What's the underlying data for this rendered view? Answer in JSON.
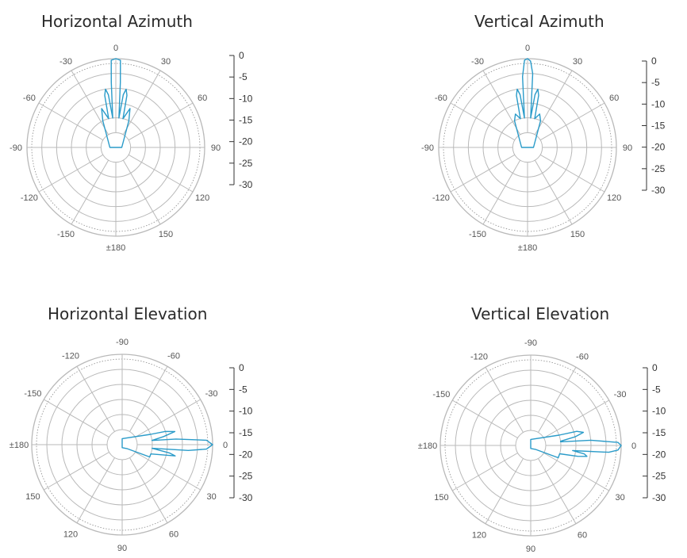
{
  "colors": {
    "trace": "#2a9bc9",
    "grid": "#b9b9b9",
    "dotted": "#8a8a8a",
    "text": "#555555",
    "scale": "#333333"
  },
  "chart_data": [
    {
      "type": "polar",
      "title": "Horizontal Azimuth",
      "angle_labels": [
        "0",
        "30",
        "60",
        "90",
        "120",
        "150",
        "±180",
        "-150",
        "-120",
        "-90",
        "-60",
        "-30"
      ],
      "angle_values": [
        0,
        30,
        60,
        90,
        120,
        150,
        180,
        -150,
        -120,
        -90,
        -60,
        -30
      ],
      "zero_direction": "top",
      "scale_ticks": [
        "0",
        "-5",
        "-10",
        "-15",
        "-20",
        "-25",
        "-30"
      ],
      "rlim": [
        -30,
        0
      ],
      "series": [
        {
          "points": [
            [
              -6,
              -20
            ],
            [
              -4,
              -8
            ],
            [
              -3,
              -0.5
            ],
            [
              0,
              0
            ],
            [
              3,
              -0.5
            ],
            [
              4,
              -8
            ],
            [
              6,
              -20
            ],
            [
              8,
              -12
            ],
            [
              10,
              -10
            ],
            [
              12,
              -12
            ],
            [
              14,
              -20
            ],
            [
              20,
              -16
            ],
            [
              26,
              -20
            ],
            [
              90,
              -28
            ],
            [
              180,
              -30
            ],
            [
              270,
              -28
            ],
            [
              334,
              -20
            ],
            [
              340,
              -16
            ],
            [
              346,
              -20
            ],
            [
              348,
              -12
            ],
            [
              350,
              -10
            ],
            [
              352,
              -12
            ],
            [
              354,
              -20
            ]
          ]
        }
      ]
    },
    {
      "type": "polar",
      "title": "Vertical Azimuth",
      "angle_labels": [
        "0",
        "30",
        "60",
        "90",
        "120",
        "150",
        "±180",
        "-150",
        "-120",
        "-90",
        "-60",
        "-30"
      ],
      "angle_values": [
        0,
        30,
        60,
        90,
        120,
        150,
        180,
        -150,
        -120,
        -90,
        -60,
        -30
      ],
      "zero_direction": "top",
      "scale_ticks": [
        "0",
        "-5",
        "-10",
        "-15",
        "-20",
        "-25",
        "-30"
      ],
      "rlim": [
        -30,
        0
      ],
      "series": [
        {
          "points": [
            [
              -6,
              -20
            ],
            [
              -4,
              -6
            ],
            [
              -2,
              -0.5
            ],
            [
              0,
              0
            ],
            [
              2,
              -0.8
            ],
            [
              4,
              -5
            ],
            [
              6,
              -20
            ],
            [
              8,
              -12
            ],
            [
              10,
              -10
            ],
            [
              12,
              -12
            ],
            [
              14,
              -20
            ],
            [
              20,
              -18
            ],
            [
              26,
              -20
            ],
            [
              90,
              -28
            ],
            [
              180,
              -30
            ],
            [
              270,
              -28
            ],
            [
              334,
              -20
            ],
            [
              340,
              -18
            ],
            [
              346,
              -20
            ],
            [
              348,
              -12
            ],
            [
              350,
              -10
            ],
            [
              352,
              -12
            ],
            [
              354,
              -20
            ]
          ]
        }
      ]
    },
    {
      "type": "polar",
      "title": "Horizontal Elevation",
      "angle_labels": [
        "-90",
        "-60",
        "-30",
        "0",
        "30",
        "60",
        "90",
        "120",
        "150",
        "±180",
        "-150",
        "-120"
      ],
      "angle_values": [
        -90,
        -60,
        -30,
        0,
        30,
        60,
        90,
        120,
        150,
        180,
        -150,
        -120
      ],
      "zero_direction": "right",
      "scale_ticks": [
        "0",
        "-5",
        "-10",
        "-15",
        "-20",
        "-25",
        "-30"
      ],
      "rlim": [
        -30,
        0
      ],
      "series": [
        {
          "points": [
            [
              -8,
              -20
            ],
            [
              -6,
              -12
            ],
            [
              -3,
              -2
            ],
            [
              0,
              0
            ],
            [
              3,
              -2
            ],
            [
              5,
              -8
            ],
            [
              7,
              -20
            ],
            [
              10,
              -14
            ],
            [
              12,
              -12
            ],
            [
              14,
              -16
            ],
            [
              18,
              -20
            ],
            [
              24,
              -20
            ],
            [
              40,
              -28
            ],
            [
              90,
              -29
            ],
            [
              180,
              -30
            ],
            [
              270,
              -28
            ],
            [
              340,
              -20
            ],
            [
              343,
              -15
            ],
            [
              346,
              -12
            ],
            [
              349,
              -16
            ],
            [
              352,
              -20
            ]
          ]
        }
      ]
    },
    {
      "type": "polar",
      "title": "Vertical Elevation",
      "angle_labels": [
        "-90",
        "-60",
        "-30",
        "0",
        "30",
        "60",
        "90",
        "120",
        "150",
        "±180",
        "-150",
        "-120"
      ],
      "angle_values": [
        -90,
        -60,
        -30,
        0,
        30,
        60,
        90,
        120,
        150,
        180,
        -150,
        -120
      ],
      "zero_direction": "right",
      "scale_ticks": [
        "0",
        "-5",
        "-10",
        "-15",
        "-20",
        "-25",
        "-30"
      ],
      "rlim": [
        -30,
        0
      ],
      "series": [
        {
          "points": [
            [
              -7,
              -20
            ],
            [
              -5,
              -10
            ],
            [
              -2,
              -1
            ],
            [
              0,
              0
            ],
            [
              3,
              -1
            ],
            [
              5,
              -4
            ],
            [
              7,
              -16
            ],
            [
              9,
              -12
            ],
            [
              11,
              -11
            ],
            [
              13,
              -14
            ],
            [
              16,
              -20
            ],
            [
              24,
              -20
            ],
            [
              40,
              -28
            ],
            [
              90,
              -29
            ],
            [
              180,
              -30
            ],
            [
              270,
              -28
            ],
            [
              340,
              -20
            ],
            [
              343,
              -14
            ],
            [
              346,
              -12
            ],
            [
              349,
              -15
            ],
            [
              352,
              -20
            ]
          ]
        }
      ]
    }
  ]
}
